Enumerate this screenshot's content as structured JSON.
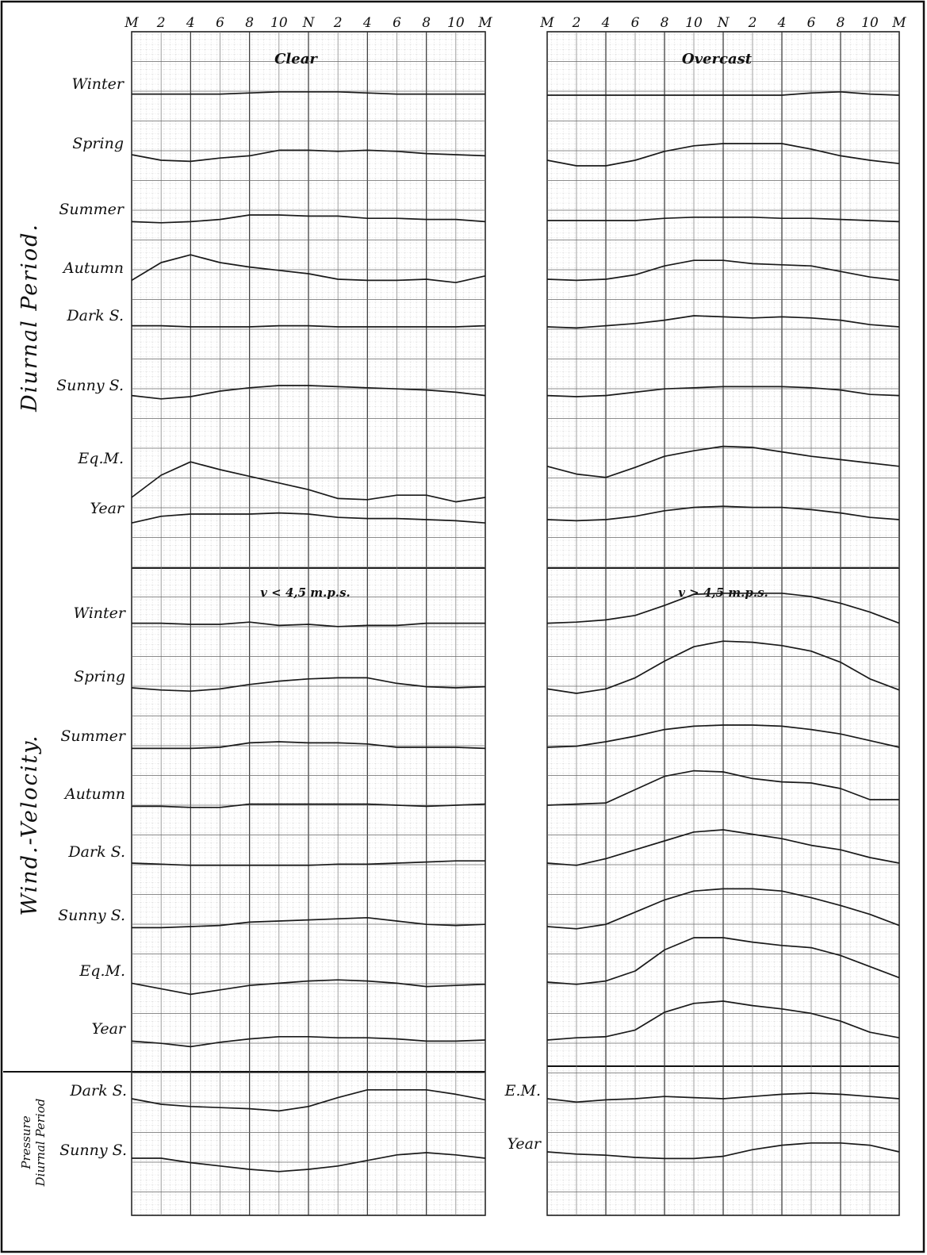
{
  "x_ticks": [
    "M",
    "2",
    "4",
    "6",
    "8",
    "10",
    "N",
    "2",
    "4",
    "6",
    "8",
    "10",
    "M"
  ],
  "panels": {
    "clear_title": "Clear",
    "overcast_title": "Overcast",
    "low_wind_title": "v < 4,5 m.p.s.",
    "high_wind_title": "v > 4,5 m.p.s."
  },
  "sections": {
    "diurnal": "Diurnal Period.",
    "wind": "Wind.-Velocity.",
    "pressure_line1": "Pressure",
    "pressure_line2": "Diurnal Period"
  },
  "row_labels_left": {
    "diurnal": [
      "Winter",
      "Spring",
      "Summer",
      "Autumn",
      "Dark S.",
      "Sunny S.",
      "Eq.M.",
      "Year"
    ],
    "wind": [
      "Winter",
      "Spring",
      "Summer",
      "Autumn",
      "Dark S.",
      "Sunny S.",
      "Eq.M.",
      "Year"
    ],
    "pressure": [
      "Dark S.",
      "Sunny S."
    ]
  },
  "row_labels_right_pressure": [
    "E.M.",
    "Year"
  ],
  "colors": {
    "line": "#1a1a1a",
    "grid_major": "#333333",
    "grid_minor": "#9a9a9a",
    "border": "#111111"
  },
  "chart_data": [
    {
      "type": "line",
      "x": [
        "M",
        "2",
        "4",
        "6",
        "8",
        "10",
        "N",
        "2",
        "4",
        "6",
        "8",
        "10",
        "M"
      ],
      "title": "Clear",
      "grid": true,
      "series": [
        {
          "name": "Winter",
          "values": [
            1,
            1,
            1,
            1,
            2,
            3,
            3,
            3,
            2,
            1,
            1,
            1,
            1
          ]
        },
        {
          "name": "Spring",
          "values": [
            0,
            -5,
            -6,
            -3,
            -1,
            4,
            4,
            3,
            4,
            3,
            1,
            0,
            -1
          ]
        },
        {
          "name": "Summer",
          "values": [
            -1,
            -2,
            -1,
            1,
            5,
            5,
            4,
            4,
            2,
            2,
            1,
            1,
            -1
          ]
        },
        {
          "name": "Autumn",
          "values": [
            -1,
            15,
            22,
            15,
            11,
            8,
            5,
            0,
            -1,
            -1,
            0,
            -3,
            3
          ]
        },
        {
          "name": "Dark S.",
          "values": [
            1,
            1,
            0,
            0,
            0,
            1,
            1,
            0,
            0,
            0,
            0,
            0,
            1
          ]
        },
        {
          "name": "Sunny S.",
          "values": [
            1,
            -2,
            0,
            5,
            8,
            10,
            10,
            9,
            8,
            7,
            6,
            4,
            1
          ]
        },
        {
          "name": "Eq.M.",
          "values": [
            -25,
            -5,
            7,
            0,
            -6,
            -12,
            -18,
            -26,
            -27,
            -23,
            -23,
            -29,
            -25
          ]
        },
        {
          "name": "Year",
          "values": [
            -3,
            3,
            5,
            5,
            5,
            6,
            5,
            2,
            1,
            1,
            0,
            -1,
            -3
          ]
        }
      ]
    },
    {
      "type": "line",
      "x": [
        "M",
        "2",
        "4",
        "6",
        "8",
        "10",
        "N",
        "2",
        "4",
        "6",
        "8",
        "10",
        "M"
      ],
      "title": "Overcast",
      "grid": true,
      "series": [
        {
          "name": "Winter",
          "values": [
            0,
            0,
            0,
            0,
            0,
            0,
            0,
            0,
            0,
            2,
            3,
            1,
            0
          ]
        },
        {
          "name": "Spring",
          "values": [
            -5,
            -10,
            -10,
            -5,
            3,
            8,
            10,
            10,
            10,
            5,
            -1,
            -5,
            -8
          ]
        },
        {
          "name": "Summer",
          "values": [
            0,
            0,
            0,
            0,
            2,
            3,
            3,
            3,
            2,
            2,
            1,
            0,
            -1
          ]
        },
        {
          "name": "Autumn",
          "values": [
            0,
            -1,
            0,
            4,
            12,
            17,
            17,
            14,
            13,
            12,
            7,
            2,
            -1
          ]
        },
        {
          "name": "Dark S.",
          "values": [
            0,
            -1,
            1,
            3,
            6,
            10,
            9,
            8,
            9,
            8,
            6,
            2,
            0
          ]
        },
        {
          "name": "Sunny S.",
          "values": [
            1,
            0,
            1,
            4,
            7,
            8,
            9,
            9,
            9,
            8,
            6,
            2,
            1
          ]
        },
        {
          "name": "Eq.M.",
          "values": [
            3,
            -4,
            -7,
            2,
            12,
            17,
            21,
            20,
            16,
            12,
            9,
            6,
            3
          ]
        },
        {
          "name": "Year",
          "values": [
            0,
            -1,
            0,
            3,
            8,
            11,
            12,
            11,
            11,
            9,
            6,
            2,
            0
          ]
        }
      ]
    },
    {
      "type": "line",
      "x": [
        "M",
        "2",
        "4",
        "6",
        "8",
        "10",
        "N",
        "2",
        "4",
        "6",
        "8",
        "10",
        "M"
      ],
      "title": "v < 4,5 m.p.s.",
      "grid": true,
      "series": [
        {
          "name": "Winter",
          "values": [
            1,
            1,
            0,
            0,
            2,
            -1,
            0,
            -2,
            -1,
            -1,
            1,
            1,
            1
          ]
        },
        {
          "name": "Spring",
          "values": [
            0,
            -2,
            -3,
            -1,
            3,
            6,
            8,
            9,
            9,
            4,
            1,
            0,
            1
          ]
        },
        {
          "name": "Summer",
          "values": [
            -1,
            -1,
            -1,
            0,
            4,
            5,
            4,
            4,
            3,
            0,
            0,
            0,
            -1
          ]
        },
        {
          "name": "Autumn",
          "values": [
            -1,
            -1,
            -2,
            -2,
            1,
            1,
            1,
            1,
            1,
            0,
            -1,
            0,
            1
          ]
        },
        {
          "name": "Dark S.",
          "values": [
            0,
            -1,
            -2,
            -2,
            -2,
            -2,
            -2,
            -1,
            -1,
            0,
            1,
            2,
            2
          ]
        },
        {
          "name": "Sunny S.",
          "values": [
            -1,
            -1,
            0,
            1,
            4,
            5,
            6,
            7,
            8,
            5,
            2,
            1,
            2
          ]
        },
        {
          "name": "Eq.M.",
          "values": [
            -1,
            -6,
            -11,
            -7,
            -3,
            -1,
            1,
            2,
            1,
            -1,
            -4,
            -3,
            -2
          ]
        },
        {
          "name": "Year",
          "values": [
            -1,
            -3,
            -6,
            -2,
            1,
            3,
            3,
            2,
            2,
            1,
            -1,
            -1,
            0
          ]
        }
      ]
    },
    {
      "type": "line",
      "x": [
        "M",
        "2",
        "4",
        "6",
        "8",
        "10",
        "N",
        "2",
        "4",
        "6",
        "8",
        "10",
        "M"
      ],
      "title": "v > 4,5 m.p.s.",
      "grid": true,
      "series": [
        {
          "name": "Winter",
          "values": [
            1,
            2,
            4,
            8,
            17,
            27,
            28,
            28,
            28,
            25,
            19,
            11,
            1
          ]
        },
        {
          "name": "Spring",
          "values": [
            -1,
            -5,
            -1,
            9,
            24,
            37,
            42,
            41,
            38,
            33,
            23,
            8,
            -2
          ]
        },
        {
          "name": "Summer",
          "values": [
            0,
            1,
            5,
            10,
            16,
            19,
            20,
            20,
            19,
            16,
            12,
            6,
            0
          ]
        },
        {
          "name": "Autumn",
          "values": [
            0,
            1,
            2,
            14,
            26,
            31,
            30,
            24,
            21,
            20,
            15,
            5,
            5
          ]
        },
        {
          "name": "Dark S.",
          "values": [
            0,
            -2,
            4,
            12,
            20,
            28,
            30,
            26,
            22,
            16,
            12,
            5,
            0
          ]
        },
        {
          "name": "Sunny S.",
          "values": [
            0,
            -2,
            2,
            13,
            24,
            32,
            34,
            34,
            32,
            26,
            19,
            11,
            1
          ]
        },
        {
          "name": "Eq.M.",
          "values": [
            0,
            -2,
            1,
            10,
            29,
            40,
            40,
            36,
            33,
            31,
            24,
            14,
            4
          ]
        },
        {
          "name": "Year",
          "values": [
            0,
            2,
            3,
            9,
            25,
            33,
            35,
            31,
            28,
            24,
            17,
            7,
            2
          ]
        }
      ]
    },
    {
      "type": "line",
      "x": [
        "M",
        "2",
        "4",
        "6",
        "8",
        "10",
        "N",
        "2",
        "4",
        "6",
        "8",
        "10",
        "M"
      ],
      "title": "",
      "grid": true,
      "series": [
        {
          "name": "Dark S.",
          "values": [
            0,
            -5,
            -7,
            -8,
            -9,
            -11,
            -7,
            1,
            8,
            8,
            8,
            4,
            -1
          ]
        },
        {
          "name": "Sunny S.",
          "values": [
            0,
            0,
            -4,
            -7,
            -10,
            -12,
            -10,
            -7,
            -2,
            3,
            5,
            3,
            0
          ]
        }
      ]
    },
    {
      "type": "line",
      "x": [
        "M",
        "2",
        "4",
        "6",
        "8",
        "10",
        "N",
        "2",
        "4",
        "6",
        "8",
        "10",
        "M"
      ],
      "title": "",
      "grid": true,
      "series": [
        {
          "name": "E.M.",
          "values": [
            0,
            -3,
            -1,
            0,
            2,
            1,
            0,
            2,
            4,
            5,
            4,
            2,
            0
          ]
        },
        {
          "name": "Year",
          "values": [
            0,
            -2,
            -3,
            -5,
            -6,
            -6,
            -4,
            2,
            6,
            8,
            8,
            6,
            0
          ]
        }
      ]
    }
  ]
}
